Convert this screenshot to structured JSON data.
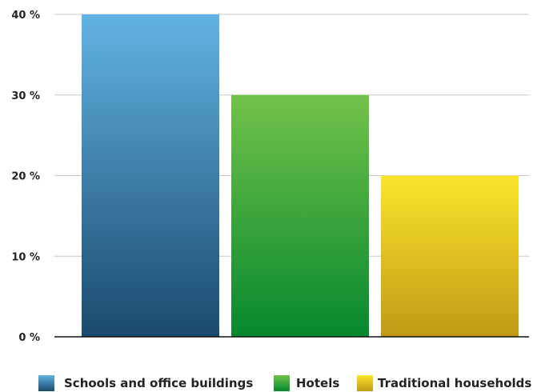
{
  "chart_data": {
    "type": "bar",
    "categories": [
      "Schools and office buildings",
      "Hotels",
      "Traditional households"
    ],
    "values": [
      40,
      30,
      20
    ],
    "unit": "%",
    "ylim": [
      0,
      40
    ],
    "yticks": [
      0,
      10,
      20,
      30,
      40
    ],
    "ytick_labels": [
      "0 %",
      "10 %",
      "20 %",
      "30 %",
      "40 %"
    ],
    "title": "",
    "xlabel": "",
    "ylabel": "",
    "grid": true,
    "legend_position": "bottom",
    "colors": [
      {
        "top": "#62b3e3",
        "bottom": "#1a4a6e"
      },
      {
        "top": "#72c24a",
        "bottom": "#06882e"
      },
      {
        "top": "#fbe52b",
        "bottom": "#c09a17"
      }
    ]
  }
}
